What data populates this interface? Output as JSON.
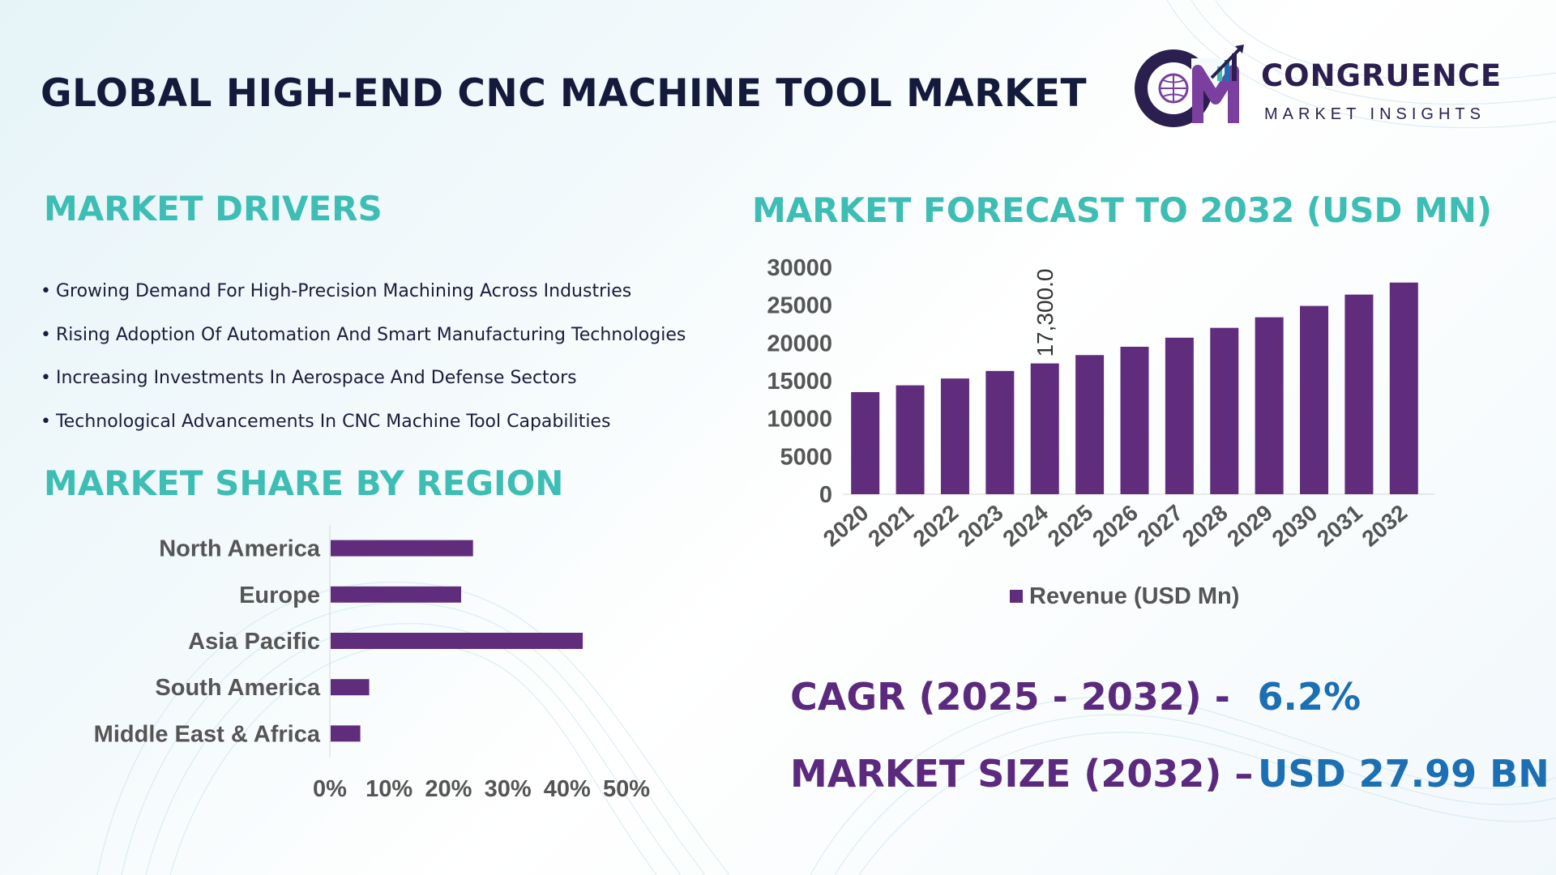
{
  "title": "GLOBAL HIGH-END CNC MACHINE TOOL MARKET",
  "logo": {
    "name": "CONGRUENCE",
    "sub": "MARKET INSIGHTS"
  },
  "drivers": {
    "heading": "MARKET DRIVERS",
    "items": [
      "Growing Demand For High-Precision Machining Across Industries",
      "Rising Adoption Of Automation And Smart Manufacturing Technologies",
      "Increasing Investments In Aerospace And Defense Sectors",
      "Technological Advancements In CNC Machine Tool Capabilities"
    ]
  },
  "region_heading": "MARKET SHARE BY REGION",
  "forecast_heading": "MARKET FORECAST TO 2032 (USD MN)",
  "stats": {
    "cagr_label": "CAGR (2025 - 2032) -",
    "cagr_value": "6.2%",
    "size_label": "MARKET SIZE (2032) –",
    "size_value": "USD 27.99 BN"
  },
  "colors": {
    "bar": "#602d7d",
    "heading": "#3dbdb4",
    "title": "#141a3c",
    "stat_label": "#5b2a7e",
    "stat_value": "#1c6fb3",
    "tick": "#555555"
  },
  "chart_data": [
    {
      "type": "bar",
      "orientation": "horizontal",
      "categories": [
        "North America",
        "Europe",
        "Asia Pacific",
        "South America",
        "Middle East & Africa"
      ],
      "values": [
        24,
        22,
        42.5,
        6.5,
        5
      ],
      "xlim": [
        0,
        50
      ],
      "xticks": [
        "0%",
        "10%",
        "20%",
        "30%",
        "40%",
        "50%"
      ],
      "grid": false
    },
    {
      "type": "bar",
      "categories": [
        "2020",
        "2021",
        "2022",
        "2023",
        "2024",
        "2025",
        "2026",
        "2027",
        "2028",
        "2029",
        "2030",
        "2031",
        "2032"
      ],
      "series": [
        {
          "name": "Revenue (USD Mn)",
          "values": [
            13500,
            14400,
            15300,
            16300,
            17300,
            18400,
            19500,
            20700,
            22000,
            23400,
            24900,
            26400,
            27990
          ]
        }
      ],
      "data_labels": [
        {
          "category": "2024",
          "text": "17,300.0"
        }
      ],
      "ylim": [
        0,
        30000
      ],
      "yticks": [
        "0",
        "5000",
        "10000",
        "15000",
        "20000",
        "25000",
        "30000"
      ],
      "legend": "bottom",
      "grid": false
    }
  ]
}
